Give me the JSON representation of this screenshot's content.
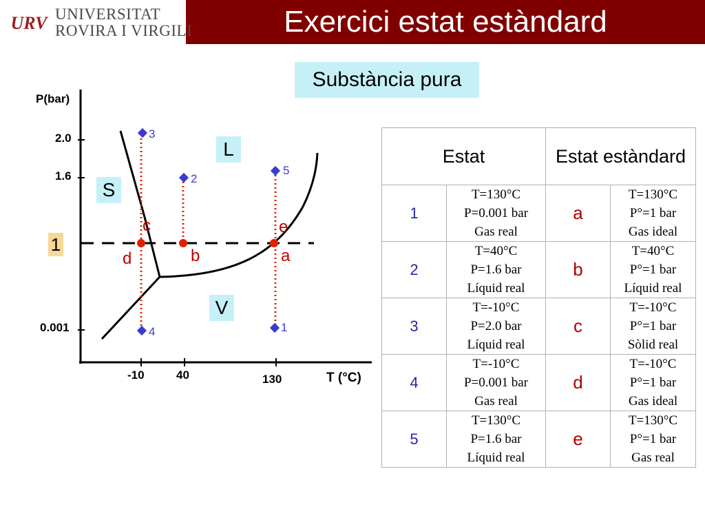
{
  "header": {
    "title": "Exercici estat estàndard",
    "university_line1": "UNIVERSITAT",
    "university_line2": "ROVIRA I VIRGILI",
    "logo_text": "URV",
    "bar_color": "#800000"
  },
  "subtitle": "Substància pura",
  "diagram": {
    "y_axis_label": "P(bar)",
    "x_axis_label": "T (°C)",
    "y_ticks": [
      "2.0",
      "1.6",
      "1",
      "0.001"
    ],
    "x_ticks": [
      "-10",
      "40",
      "130"
    ],
    "regions": {
      "solid": "S",
      "liquid": "L",
      "vapor": "V"
    },
    "state_points": [
      "1",
      "2",
      "3",
      "4",
      "5"
    ],
    "standard_points": [
      "a",
      "b",
      "c",
      "d",
      "e"
    ]
  },
  "table": {
    "headers": [
      "Estat",
      "Estat estàndard"
    ],
    "rows": [
      {
        "num": "1",
        "state": [
          "T=130°C",
          "P=0.001 bar",
          "Gas real"
        ],
        "letter": "a",
        "standard": [
          "T=130°C",
          "P°=1 bar",
          "Gas ideal"
        ]
      },
      {
        "num": "2",
        "state": [
          "T=40°C",
          "P=1.6 bar",
          "Líquid real"
        ],
        "letter": "b",
        "standard": [
          "T=40°C",
          "P°=1 bar",
          "Líquid real"
        ]
      },
      {
        "num": "3",
        "state": [
          "T=-10°C",
          "P=2.0 bar",
          "Líquid real"
        ],
        "letter": "c",
        "standard": [
          "T=-10°C",
          "P°=1 bar",
          "Sòlid real"
        ]
      },
      {
        "num": "4",
        "state": [
          "T=-10°C",
          "P=0.001 bar",
          "Gas real"
        ],
        "letter": "d",
        "standard": [
          "T=-10°C",
          "P°=1 bar",
          "Gas ideal"
        ]
      },
      {
        "num": "5",
        "state": [
          "T=130°C",
          "P=1.6 bar",
          "Líquid real"
        ],
        "letter": "e",
        "standard": [
          "T=130°C",
          "P°=1 bar",
          "Gas real"
        ]
      }
    ]
  },
  "colors": {
    "highlight_box": "#c6f0f8",
    "one_bar_box": "#f8d898",
    "points": "#e02000",
    "markers": "#3a3ad0"
  }
}
